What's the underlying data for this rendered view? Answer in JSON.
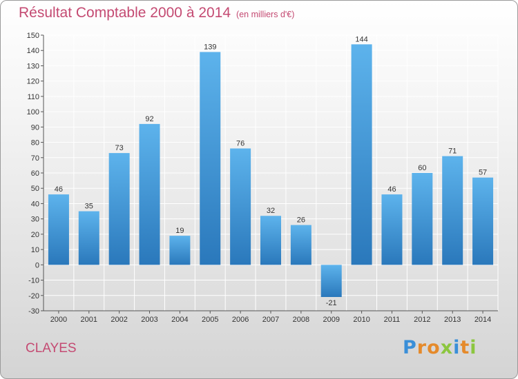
{
  "header": {
    "title": "Résultat Comptable 2000 à 2014",
    "unit": "(en milliers d'€)"
  },
  "footer": {
    "place": "CLAYES",
    "logo_letters": [
      "P",
      "r",
      "o",
      "x",
      "i",
      "t",
      "i"
    ]
  },
  "colors": {
    "title": "#c44a72",
    "bar_light": "#5db3ec",
    "bar_dark": "#2a78bb",
    "grid": "#ffffff",
    "logo": [
      "#3a8fd8",
      "#e58a2b",
      "#e58a2b",
      "#8cc63f",
      "#3a8fd8",
      "#e58a2b",
      "#8cc63f"
    ]
  },
  "chart_data": {
    "type": "bar",
    "title": "Résultat Comptable 2000 à 2014",
    "subtitle": "(en milliers d'€)",
    "categories": [
      "2000",
      "2001",
      "2002",
      "2003",
      "2004",
      "2005",
      "2006",
      "2007",
      "2008",
      "2009",
      "2010",
      "2011",
      "2012",
      "2013",
      "2014"
    ],
    "values": [
      46,
      35,
      73,
      92,
      19,
      139,
      76,
      32,
      26,
      -21,
      144,
      46,
      60,
      71,
      57
    ],
    "ylim": [
      -30,
      150
    ],
    "yticks": [
      150,
      140,
      130,
      120,
      110,
      100,
      90,
      80,
      70,
      60,
      50,
      40,
      30,
      20,
      10,
      0,
      -10,
      -20,
      -30
    ],
    "grid": true
  }
}
